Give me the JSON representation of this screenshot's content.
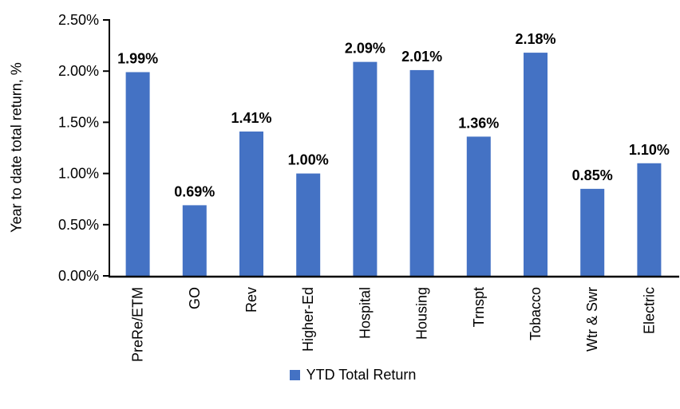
{
  "chart_data": {
    "type": "bar",
    "title": "",
    "categories": [
      "PreRe/ETM",
      "GO",
      "Rev",
      "Higher-Ed",
      "Hospital",
      "Housing",
      "Trnspt",
      "Tobacco",
      "Wtr & Swr",
      "Electric"
    ],
    "values": [
      1.99,
      0.69,
      1.41,
      1.0,
      2.09,
      2.01,
      1.36,
      2.18,
      0.85,
      1.1
    ],
    "data_labels": [
      "1.99%",
      "0.69%",
      "1.41%",
      "1.00%",
      "2.09%",
      "2.01%",
      "1.36%",
      "2.18%",
      "0.85%",
      "1.10%"
    ],
    "xlabel": "",
    "ylabel": "Year to date total return, %",
    "ylim": [
      0,
      2.5
    ],
    "yticks": [
      0,
      0.5,
      1.0,
      1.5,
      2.0,
      2.5
    ],
    "ytick_labels": [
      "0.00%",
      "0.50%",
      "1.00%",
      "1.50%",
      "2.00%",
      "2.50%"
    ],
    "grid": false,
    "legend_position": "bottom-center",
    "legend": [
      {
        "label": "YTD Total Return",
        "color": "#4472C4"
      }
    ],
    "colors": {
      "bar": "#4472C4",
      "axis": "#000000",
      "text": "#000000",
      "background": "#FFFFFF"
    }
  }
}
